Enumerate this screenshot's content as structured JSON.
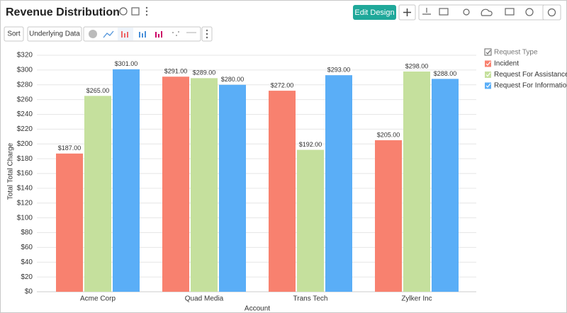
{
  "header": {
    "title": "Revenue Distribution",
    "edit_button": "Edit Design"
  },
  "toolbar": {
    "sort": "Sort",
    "underlying_data": "Underlying Data"
  },
  "chart_data": {
    "type": "bar",
    "x_label": "Account",
    "y_label": "Total Total Charge",
    "legend_title": "Request Type",
    "categories": [
      "Acme Corp",
      "Quad Media",
      "Trans Tech",
      "Zylker Inc"
    ],
    "series": [
      {
        "name": "Incident",
        "color": "#f8816f",
        "values": [
          187,
          291,
          272,
          205
        ],
        "value_labels": [
          "$187.00",
          "$291.00",
          "$272.00",
          "$205.00"
        ]
      },
      {
        "name": "Request For Assistance",
        "color": "#c5e09d",
        "values": [
          265,
          289,
          192,
          298
        ],
        "value_labels": [
          "$265.00",
          "$289.00",
          "$192.00",
          "$298.00"
        ]
      },
      {
        "name": "Request For Information",
        "color": "#5aaef7",
        "values": [
          301,
          280,
          293,
          288
        ],
        "value_labels": [
          "$301.00",
          "$280.00",
          "$293.00",
          "$288.00"
        ]
      }
    ],
    "ylim": [
      0,
      320
    ],
    "yticks": [
      {
        "value": 0,
        "label": "$0"
      },
      {
        "value": 20,
        "label": "$20"
      },
      {
        "value": 40,
        "label": "$40"
      },
      {
        "value": 60,
        "label": "$60"
      },
      {
        "value": 80,
        "label": "$80"
      },
      {
        "value": 100,
        "label": "$100"
      },
      {
        "value": 120,
        "label": "$120"
      },
      {
        "value": 140,
        "label": "$140"
      },
      {
        "value": 160,
        "label": "$160"
      },
      {
        "value": 180,
        "label": "$180"
      },
      {
        "value": 200,
        "label": "$200"
      },
      {
        "value": 220,
        "label": "$220"
      },
      {
        "value": 240,
        "label": "$240"
      },
      {
        "value": 260,
        "label": "$260"
      },
      {
        "value": 280,
        "label": "$280"
      },
      {
        "value": 300,
        "label": "$300"
      },
      {
        "value": 320,
        "label": "$320"
      }
    ],
    "grid": true,
    "legend": "right"
  }
}
